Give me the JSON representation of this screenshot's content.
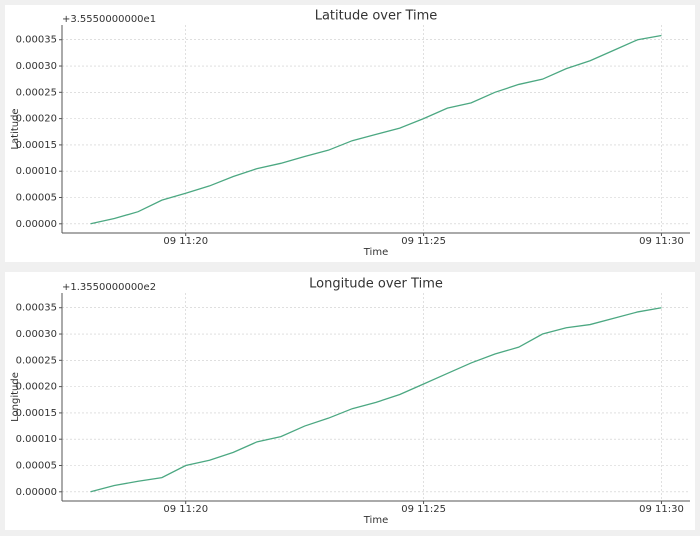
{
  "chart_data": [
    {
      "type": "line",
      "title": "Latitude over Time",
      "offset_text": "+3.5550000000e1",
      "xlabel": "Time",
      "ylabel": "Latitude",
      "x": [
        "09 11:18:00",
        "09 11:18:30",
        "09 11:19:00",
        "09 11:19:30",
        "09 11:20:00",
        "09 11:20:30",
        "09 11:21:00",
        "09 11:21:30",
        "09 11:22:00",
        "09 11:22:30",
        "09 11:23:00",
        "09 11:23:30",
        "09 11:24:00",
        "09 11:24:30",
        "09 11:25:00",
        "09 11:25:30",
        "09 11:26:00",
        "09 11:26:30",
        "09 11:27:00",
        "09 11:27:30",
        "09 11:28:00",
        "09 11:28:30",
        "09 11:29:00",
        "09 11:29:30",
        "09 11:30:00"
      ],
      "series": [
        {
          "name": "Latitude",
          "color": "#4ca882",
          "values": [
            0,
            1e-05,
            2.3e-05,
            4.5e-05,
            5.8e-05,
            7.2e-05,
            9e-05,
            0.000105,
            0.000115,
            0.000128,
            0.00014,
            0.000158,
            0.00017,
            0.000182,
            0.0002,
            0.00022,
            0.00023,
            0.00025,
            0.000265,
            0.000275,
            0.000295,
            0.00031,
            0.00033,
            0.00035,
            0.000358
          ]
        }
      ],
      "xlim": [
        "09 11:17:24",
        "09 11:30:36"
      ],
      "xticks": [
        "09 11:20",
        "09 11:25",
        "09 11:30"
      ],
      "ylim": [
        -1.75e-05,
        0.000378
      ],
      "yticks": [
        {
          "value": 0,
          "label": "0.00000"
        },
        {
          "value": 5e-05,
          "label": "0.00005"
        },
        {
          "value": 0.0001,
          "label": "0.00010"
        },
        {
          "value": 0.00015,
          "label": "0.00015"
        },
        {
          "value": 0.0002,
          "label": "0.00020"
        },
        {
          "value": 0.00025,
          "label": "0.00025"
        },
        {
          "value": 0.0003,
          "label": "0.00030"
        },
        {
          "value": 0.00035,
          "label": "0.00035"
        }
      ],
      "grid": true
    },
    {
      "type": "line",
      "title": "Longitude over Time",
      "offset_text": "+1.3550000000e2",
      "xlabel": "Time",
      "ylabel": "Longitude",
      "x": [
        "09 11:18:00",
        "09 11:18:30",
        "09 11:19:00",
        "09 11:19:30",
        "09 11:20:00",
        "09 11:20:30",
        "09 11:21:00",
        "09 11:21:30",
        "09 11:22:00",
        "09 11:22:30",
        "09 11:23:00",
        "09 11:23:30",
        "09 11:24:00",
        "09 11:24:30",
        "09 11:25:00",
        "09 11:25:30",
        "09 11:26:00",
        "09 11:26:30",
        "09 11:27:00",
        "09 11:27:30",
        "09 11:28:00",
        "09 11:28:30",
        "09 11:29:00",
        "09 11:29:30",
        "09 11:30:00"
      ],
      "series": [
        {
          "name": "Longitude",
          "color": "#4ca882",
          "values": [
            0,
            1.2e-05,
            2e-05,
            2.7e-05,
            5e-05,
            6e-05,
            7.5e-05,
            9.5e-05,
            0.000105,
            0.000125,
            0.00014,
            0.000158,
            0.00017,
            0.000185,
            0.000205,
            0.000225,
            0.000245,
            0.000262,
            0.000275,
            0.0003,
            0.000312,
            0.000318,
            0.00033,
            0.000342,
            0.00035
          ]
        }
      ],
      "xlim": [
        "09 11:17:24",
        "09 11:30:36"
      ],
      "xticks": [
        "09 11:20",
        "09 11:25",
        "09 11:30"
      ],
      "ylim": [
        -1.75e-05,
        0.000378
      ],
      "yticks": [
        {
          "value": 0,
          "label": "0.00000"
        },
        {
          "value": 5e-05,
          "label": "0.00005"
        },
        {
          "value": 0.0001,
          "label": "0.00010"
        },
        {
          "value": 0.00015,
          "label": "0.00015"
        },
        {
          "value": 0.0002,
          "label": "0.00020"
        },
        {
          "value": 0.00025,
          "label": "0.00025"
        },
        {
          "value": 0.0003,
          "label": "0.00030"
        },
        {
          "value": 0.00035,
          "label": "0.00035"
        }
      ],
      "grid": true
    }
  ]
}
